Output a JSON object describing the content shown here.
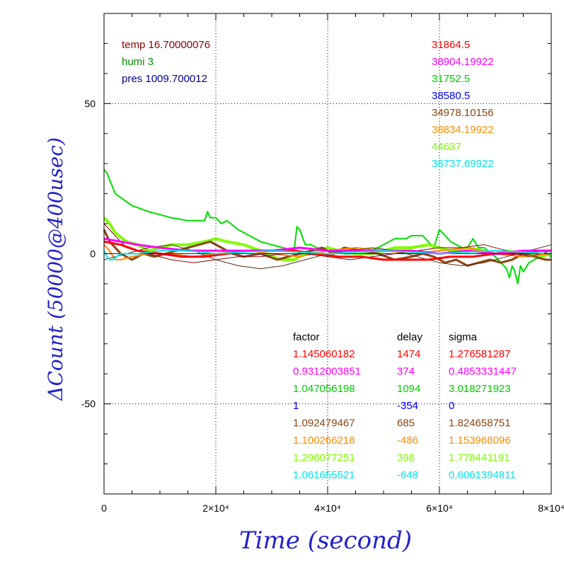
{
  "chart_data": {
    "type": "line",
    "xlabel": "Time (second)",
    "ylabel": "ΔCount (50000@400usec)",
    "xlim": [
      0,
      80000
    ],
    "ylim": [
      -80,
      80
    ],
    "x_ticks": [
      {
        "value": 0,
        "label": "0"
      },
      {
        "value": 20000,
        "label": "2×10⁴"
      },
      {
        "value": 40000,
        "label": "4×10⁴"
      },
      {
        "value": 60000,
        "label": "6×10⁴"
      },
      {
        "value": 80000,
        "label": "8×10⁴"
      }
    ],
    "y_ticks": [
      {
        "value": 50,
        "label": "50"
      },
      {
        "value": 0,
        "label": "0"
      },
      {
        "value": -50,
        "label": "-50"
      }
    ],
    "grid": true,
    "annotations_left": [
      {
        "text": "temp 16.70000076",
        "color": "#8b0000"
      },
      {
        "text": "humi 3",
        "color": "#008b00"
      },
      {
        "text": "pres 1009.700012",
        "color": "#00008b"
      }
    ],
    "series_labels": [
      {
        "text": "31864.5",
        "color": "#ff0000"
      },
      {
        "text": "38904.19922",
        "color": "#ff00ff"
      },
      {
        "text": "31752.5",
        "color": "#00cc00"
      },
      {
        "text": "38580.5",
        "color": "#0000ff"
      },
      {
        "text": "34978.10156",
        "color": "#8b4513"
      },
      {
        "text": "38834.19922",
        "color": "#ff8c00"
      },
      {
        "text": "44637",
        "color": "#7fff00"
      },
      {
        "text": "38737.69922",
        "color": "#00e5ee"
      }
    ],
    "table": {
      "headers": [
        "factor",
        "delay",
        "sigma"
      ],
      "rows": [
        {
          "factor": "1.145060182",
          "delay": "1474",
          "sigma": "1.276581287",
          "color": "#ff0000"
        },
        {
          "factor": "0.9312003851",
          "delay": "374",
          "sigma": "0.4853331447",
          "color": "#ff00ff"
        },
        {
          "factor": "1.047056198",
          "delay": "1094",
          "sigma": "3.018271923",
          "color": "#00cc00"
        },
        {
          "factor": "1",
          "delay": "-354",
          "sigma": "0",
          "color": "#0000ff"
        },
        {
          "factor": "1.092479467",
          "delay": "685",
          "sigma": "1.824658751",
          "color": "#8b4513"
        },
        {
          "factor": "1.100266218",
          "delay": "-486",
          "sigma": "1.153968096",
          "color": "#ff8c00"
        },
        {
          "factor": "1.296077251",
          "delay": "398",
          "sigma": "1.778441191",
          "color": "#7fff00"
        },
        {
          "factor": "1.061655521",
          "delay": "-648",
          "sigma": "0.6061394811",
          "color": "#00e5ee"
        }
      ]
    },
    "series": [
      {
        "color": "#00dd00",
        "x": [
          0,
          500,
          2000,
          5000,
          8000,
          10000,
          12000,
          15000,
          18000,
          18500,
          19000,
          20000,
          21000,
          22000,
          24000,
          26000,
          28000,
          30000,
          32000,
          34000,
          34500,
          35000,
          36000,
          37000,
          38000,
          40000,
          43000,
          46000,
          49000,
          50000,
          52000,
          54000,
          55000,
          57000,
          58000,
          59000,
          60000,
          62000,
          64000,
          65000,
          66000,
          67000,
          68000,
          70000,
          71000,
          72000,
          72500,
          73000,
          73500,
          74000,
          74500,
          75000,
          76000,
          77000,
          78000,
          79000,
          80000
        ],
        "y": [
          28,
          27,
          20,
          16,
          14,
          13,
          12,
          11,
          11,
          14,
          12,
          12,
          10,
          11,
          8,
          6,
          4,
          3,
          2,
          1,
          9,
          8,
          3,
          3,
          2,
          1,
          0,
          0,
          2,
          3,
          5,
          5,
          6,
          6,
          4,
          2,
          8,
          4,
          2,
          2,
          5,
          2,
          2,
          -1,
          -3,
          -5,
          -8,
          -4,
          -6,
          -10,
          -4,
          -6,
          -3,
          -2,
          -1,
          0,
          -1
        ]
      },
      {
        "color": "#7fff00",
        "w": 4,
        "x": [
          0,
          1000,
          2000,
          4000,
          6000,
          8000,
          10000,
          12000,
          15000,
          18000,
          20000,
          22000,
          25000,
          28000,
          30000,
          32000,
          34000,
          36000,
          38000,
          40000,
          42000,
          45000,
          48000,
          50000,
          52000,
          55000,
          58000,
          60000,
          62000,
          65000,
          68000,
          70000,
          72000,
          75000,
          78000,
          80000
        ],
        "y": [
          12,
          10,
          7,
          4,
          3,
          1,
          2,
          3,
          3,
          4,
          5,
          4,
          3,
          1,
          -1,
          -2,
          -2,
          0,
          1,
          2,
          1,
          0,
          0,
          1,
          2,
          2,
          3,
          2,
          1,
          2,
          1,
          0,
          1,
          0,
          -1,
          0
        ]
      },
      {
        "color": "#8b4513",
        "w": 3,
        "x": [
          0,
          1000,
          2000,
          3000,
          4000,
          5000,
          7000,
          9000,
          11000,
          13000,
          15000,
          17000,
          19000,
          21000,
          23000,
          25000,
          28000,
          31000,
          33000,
          35000,
          37000,
          39000,
          41000,
          43000,
          46000,
          49000,
          52000,
          55000,
          57000,
          59000,
          61000,
          63000,
          65000,
          67000,
          69000,
          71000,
          73000,
          75000,
          77000,
          79000,
          80000
        ],
        "y": [
          8,
          4,
          2,
          0,
          -1,
          -2,
          0,
          -1,
          0,
          1,
          2,
          3,
          4,
          2,
          0,
          -1,
          0,
          -2,
          -1,
          0,
          1,
          2,
          0,
          2,
          1,
          0,
          -2,
          -1,
          0,
          -1,
          -3,
          -2,
          -4,
          -3,
          -2,
          -3,
          -2,
          0,
          -1,
          -2,
          -2
        ]
      },
      {
        "color": "#ff8c00",
        "w": 2,
        "x": [
          0,
          1000,
          2000,
          3000,
          5000,
          8000,
          12000,
          16000,
          20000,
          25000,
          30000,
          35000,
          40000,
          45000,
          50000,
          55000,
          60000,
          65000,
          70000,
          75000,
          80000
        ],
        "y": [
          3,
          1,
          -2,
          -2,
          -1,
          0,
          0,
          -1,
          0,
          1,
          0,
          -1,
          1,
          2,
          1,
          0,
          1,
          2,
          0,
          -1,
          0
        ]
      },
      {
        "color": "#8b0000",
        "w": 1,
        "x": [
          0,
          4000,
          8000,
          12000,
          16000,
          20000,
          24000,
          28000,
          32000,
          36000,
          40000,
          44000,
          48000,
          52000,
          56000,
          60000,
          64000,
          68000,
          72000,
          76000,
          80000
        ],
        "y": [
          10,
          2,
          0,
          -2,
          -3,
          -2,
          -1,
          -1,
          0,
          0,
          -1,
          -2,
          -1,
          0,
          1,
          2,
          2,
          3,
          1,
          -1,
          1
        ]
      },
      {
        "color": "#5a2d0c",
        "w": 1,
        "x": [
          0,
          4000,
          8000,
          12000,
          16000,
          20000,
          24000,
          28000,
          32000,
          36000,
          40000,
          44000,
          48000,
          52000,
          56000,
          60000,
          64000,
          68000,
          72000,
          76000,
          80000
        ],
        "y": [
          -2,
          0,
          2,
          3,
          1,
          -2,
          -4,
          -5,
          -4,
          -2,
          0,
          1,
          2,
          1,
          -1,
          -3,
          -4,
          -3,
          -1,
          1,
          3
        ]
      },
      {
        "color": "#ff0000",
        "w": 3,
        "x": [
          0,
          3000,
          6000,
          10000,
          14000,
          18000,
          22000,
          26000,
          30000,
          34000,
          38000,
          42000,
          46000,
          50000,
          54000,
          58000,
          62000,
          66000,
          70000,
          74000,
          78000,
          80000
        ],
        "y": [
          4,
          3,
          1,
          0,
          -1,
          -1,
          0,
          1,
          1,
          1,
          0,
          -1,
          -1,
          -2,
          -2,
          -2,
          -1,
          -1,
          0,
          0,
          1,
          1
        ]
      },
      {
        "color": "#ff00ff",
        "w": 3,
        "x": [
          0,
          3000,
          6000,
          10000,
          15000,
          20000,
          25000,
          30000,
          35000,
          40000,
          45000,
          50000,
          55000,
          60000,
          65000,
          70000,
          75000,
          80000
        ],
        "y": [
          5,
          4,
          3,
          2,
          1,
          1,
          1,
          1,
          2,
          1,
          1,
          1,
          1,
          0,
          1,
          0,
          1,
          1
        ]
      },
      {
        "color": "#0000ff",
        "w": 1,
        "x": [
          0,
          10000,
          20000,
          30000,
          40000,
          50000,
          60000,
          70000,
          80000
        ],
        "y": [
          0,
          0,
          0,
          0,
          0,
          0,
          0,
          0,
          0
        ]
      },
      {
        "color": "#00e5ee",
        "w": 2,
        "x": [
          0,
          500,
          1000,
          1500,
          3000,
          6000,
          10000,
          15000,
          20000,
          30000,
          40000,
          50000,
          60000,
          70000,
          80000
        ],
        "y": [
          1,
          -1,
          -2,
          -2,
          0,
          0,
          1,
          1,
          0,
          1,
          0,
          1,
          0,
          1,
          0
        ]
      }
    ]
  }
}
